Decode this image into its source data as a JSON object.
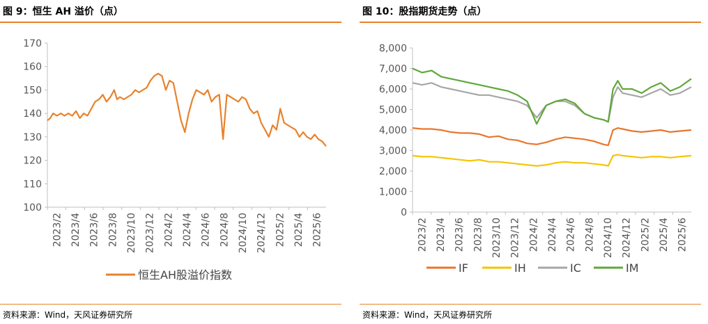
{
  "panel1": {
    "title": "图 9：恒生 AH 溢价（点）",
    "source": "资料来源：Wind，天风证券研究所"
  },
  "panel2": {
    "title": "图 10：股指期货走势（点）",
    "source": "资料来源：Wind，天风证券研究所"
  },
  "chart_data": [
    {
      "type": "line",
      "title": "",
      "ylim": [
        100,
        170
      ],
      "yticks": [
        "100",
        "110",
        "120",
        "130",
        "140",
        "150",
        "160",
        "170"
      ],
      "xticks": [
        "2023/2",
        "2023/4",
        "2023/6",
        "2023/8",
        "2023/10",
        "2023/12",
        "2024/2",
        "2024/4",
        "2024/6",
        "2024/8",
        "2024/10",
        "2024/12",
        "2025/2",
        "2025/4",
        "2025/6"
      ],
      "xrange": [
        0,
        29.2
      ],
      "grid": false,
      "legend_position": "bottom",
      "series": [
        {
          "name": "恒生AH股溢价指数",
          "color": "#E8822B",
          "x": [
            0,
            0.3,
            0.6,
            1.0,
            1.4,
            1.8,
            2.2,
            2.6,
            3.0,
            3.4,
            3.8,
            4.2,
            4.6,
            5.0,
            5.4,
            5.8,
            6.2,
            6.6,
            7.0,
            7.3,
            7.6,
            8.0,
            8.4,
            8.8,
            9.2,
            9.6,
            10.0,
            10.4,
            10.8,
            11.2,
            11.6,
            12.0,
            12.4,
            12.8,
            13.2,
            13.6,
            14.0,
            14.4,
            14.8,
            15.2,
            15.6,
            16.0,
            16.4,
            16.8,
            17.2,
            17.6,
            18.0,
            18.4,
            18.8,
            19.2,
            19.6,
            20.0,
            20.4,
            20.8,
            21.2,
            21.6,
            22.0,
            22.4,
            22.8,
            23.2,
            23.6,
            24.0,
            24.4,
            24.8,
            25.2,
            25.6,
            26.0,
            26.4,
            26.8,
            27.2,
            27.6,
            28.0,
            28.4,
            28.8,
            29.2
          ],
          "y": [
            137,
            138,
            140,
            139,
            140,
            139,
            140,
            139,
            141,
            138,
            140,
            139,
            142,
            145,
            146,
            148,
            145,
            147,
            150,
            146,
            147,
            146,
            147,
            148,
            150,
            149,
            150,
            151,
            154,
            156,
            157,
            156,
            150,
            154,
            153,
            145,
            137,
            132,
            140,
            146,
            150,
            149,
            148,
            150,
            145,
            147,
            148,
            129,
            148,
            147,
            146,
            145,
            147,
            146,
            142,
            140,
            141,
            136,
            133,
            130,
            135,
            133,
            142,
            136,
            135,
            134,
            133,
            130,
            132,
            130,
            129,
            131,
            129,
            128,
            126
          ]
        }
      ]
    },
    {
      "type": "line",
      "title": "",
      "ylim": [
        0,
        8000
      ],
      "yticks": [
        "0",
        "1,000",
        "2,000",
        "3,000",
        "4,000",
        "5,000",
        "6,000",
        "7,000",
        "8,000"
      ],
      "xticks": [
        "2023/2",
        "2023/4",
        "2023/6",
        "2023/8",
        "2023/10",
        "2023/12",
        "2024/2",
        "2024/4",
        "2024/6",
        "2024/8",
        "2024/10",
        "2024/12",
        "2025/2",
        "2025/4",
        "2025/6"
      ],
      "xrange": [
        0,
        29.2
      ],
      "grid": false,
      "legend_position": "bottom",
      "series": [
        {
          "name": "IF",
          "color": "#E8762B",
          "x": [
            0,
            1.0,
            2.0,
            3.0,
            4.0,
            5.0,
            6.0,
            7.0,
            8.0,
            9.0,
            10.0,
            11.0,
            12.0,
            13.0,
            14.0,
            15.0,
            16.0,
            17.0,
            18.0,
            19.0,
            20.0,
            20.5,
            21.0,
            21.5,
            22.0,
            23.0,
            24.0,
            25.0,
            26.0,
            27.0,
            28.0,
            29.2
          ],
          "y": [
            4100,
            4050,
            4050,
            4000,
            3900,
            3850,
            3850,
            3800,
            3650,
            3700,
            3550,
            3500,
            3350,
            3300,
            3400,
            3550,
            3650,
            3600,
            3550,
            3450,
            3300,
            3250,
            4000,
            4100,
            4050,
            3950,
            3900,
            3950,
            4000,
            3900,
            3950,
            4000
          ]
        },
        {
          "name": "IH",
          "color": "#F5C400",
          "x": [
            0,
            1.0,
            2.0,
            3.0,
            4.0,
            5.0,
            6.0,
            7.0,
            8.0,
            9.0,
            10.0,
            11.0,
            12.0,
            13.0,
            14.0,
            15.0,
            16.0,
            17.0,
            18.0,
            19.0,
            20.0,
            20.5,
            21.0,
            21.5,
            22.0,
            23.0,
            24.0,
            25.0,
            26.0,
            27.0,
            28.0,
            29.2
          ],
          "y": [
            2750,
            2700,
            2700,
            2650,
            2600,
            2550,
            2500,
            2550,
            2450,
            2450,
            2400,
            2350,
            2300,
            2250,
            2300,
            2400,
            2450,
            2400,
            2400,
            2350,
            2300,
            2250,
            2750,
            2800,
            2750,
            2700,
            2650,
            2700,
            2700,
            2650,
            2700,
            2750
          ]
        },
        {
          "name": "IC",
          "color": "#A6A6A6",
          "x": [
            0,
            1.0,
            2.0,
            3.0,
            4.0,
            5.0,
            6.0,
            7.0,
            8.0,
            9.0,
            10.0,
            11.0,
            12.0,
            13.0,
            14.0,
            15.0,
            16.0,
            17.0,
            18.0,
            19.0,
            20.0,
            20.5,
            21.0,
            21.5,
            22.0,
            23.0,
            24.0,
            25.0,
            26.0,
            27.0,
            28.0,
            29.2
          ],
          "y": [
            6300,
            6200,
            6300,
            6100,
            6000,
            5900,
            5800,
            5700,
            5700,
            5600,
            5500,
            5400,
            5200,
            4600,
            5200,
            5400,
            5400,
            5200,
            4800,
            4600,
            4500,
            4400,
            5600,
            6100,
            5800,
            5700,
            5600,
            5800,
            6000,
            5700,
            5800,
            6100
          ]
        },
        {
          "name": "IM",
          "color": "#5FA73A",
          "x": [
            0,
            1.0,
            2.0,
            3.0,
            4.0,
            5.0,
            6.0,
            7.0,
            8.0,
            9.0,
            10.0,
            11.0,
            12.0,
            13.0,
            14.0,
            15.0,
            16.0,
            17.0,
            18.0,
            19.0,
            20.0,
            20.5,
            21.0,
            21.5,
            22.0,
            23.0,
            24.0,
            25.0,
            26.0,
            27.0,
            28.0,
            29.2
          ],
          "y": [
            7000,
            6800,
            6900,
            6600,
            6500,
            6400,
            6300,
            6200,
            6100,
            6000,
            5900,
            5700,
            5400,
            4300,
            5200,
            5400,
            5500,
            5300,
            4800,
            4600,
            4500,
            4400,
            6000,
            6400,
            6000,
            6000,
            5800,
            6100,
            6300,
            5900,
            6100,
            6500
          ]
        }
      ]
    }
  ]
}
